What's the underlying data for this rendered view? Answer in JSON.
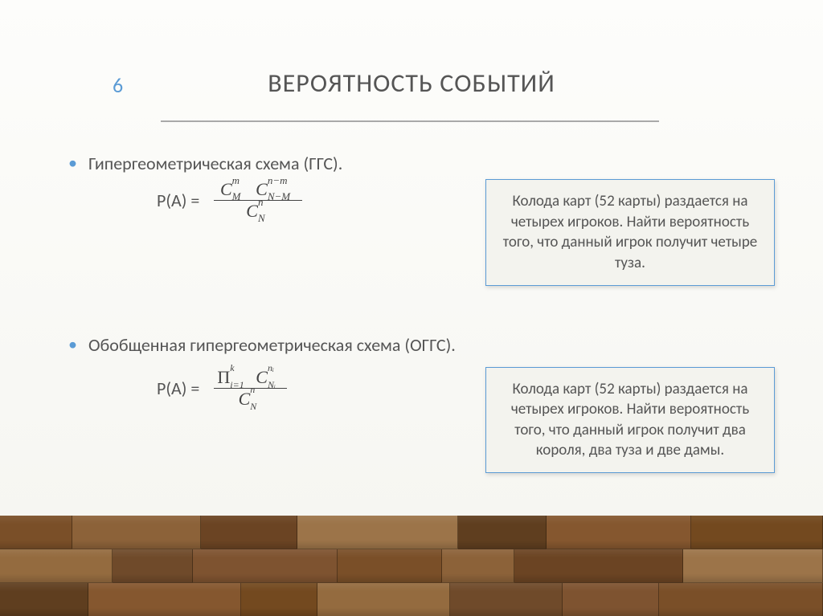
{
  "page_number": "6",
  "title": "ВЕРОЯТНОСТЬ СОБЫТИЙ",
  "section1": {
    "bullet_text": "Гипергеометрическая схема (ГГС).",
    "lhs": "P(A) =",
    "formula": {
      "num_c1_base": "C",
      "num_c1_sup": "m",
      "num_c1_sub": "M",
      "num_c2_base": "C",
      "num_c2_sup": "n−m",
      "num_c2_sub": "N−M",
      "den_c_base": "C",
      "den_c_sup": "n",
      "den_c_sub": "N"
    },
    "example": "Колода карт (52 карты) раздается на четырех игроков. Найти вероятность того, что данный игрок получит четыре туза."
  },
  "section2": {
    "bullet_text": "Обобщенная гипергеометрическая схема (ОГГС).",
    "lhs": "P(A) =",
    "formula": {
      "prod_base": "Π",
      "prod_sup": "k",
      "prod_sub": "i=1",
      "num_c_base": "C",
      "num_c_sup": "nᵢ",
      "num_c_sub": "Nᵢ",
      "den_c_base": "C",
      "den_c_sup": "n",
      "den_c_sub": "N"
    },
    "example": "Колода карт (52 карты) раздается на четырех игроков. Найти вероятность того, что данный игрок получит два короля, два туза  и две дамы."
  },
  "colors": {
    "accent": "#5b9bd5",
    "text": "#555555",
    "box_border": "#5b9bd5",
    "box_bg": "#f3f3ee"
  },
  "wood": {
    "rows": 3,
    "plank_colors": [
      "#7a4f28",
      "#8c6239",
      "#6b4423",
      "#9c7449",
      "#5f3e1f",
      "#85572f",
      "#73491f",
      "#946b3f",
      "#6f4a2a",
      "#7e5330"
    ],
    "row_widths": [
      [
        90,
        160,
        120,
        200,
        110,
        180,
        164
      ],
      [
        140,
        100,
        180,
        130,
        90,
        210,
        174
      ],
      [
        110,
        190,
        95,
        165,
        140,
        120,
        204
      ]
    ]
  }
}
